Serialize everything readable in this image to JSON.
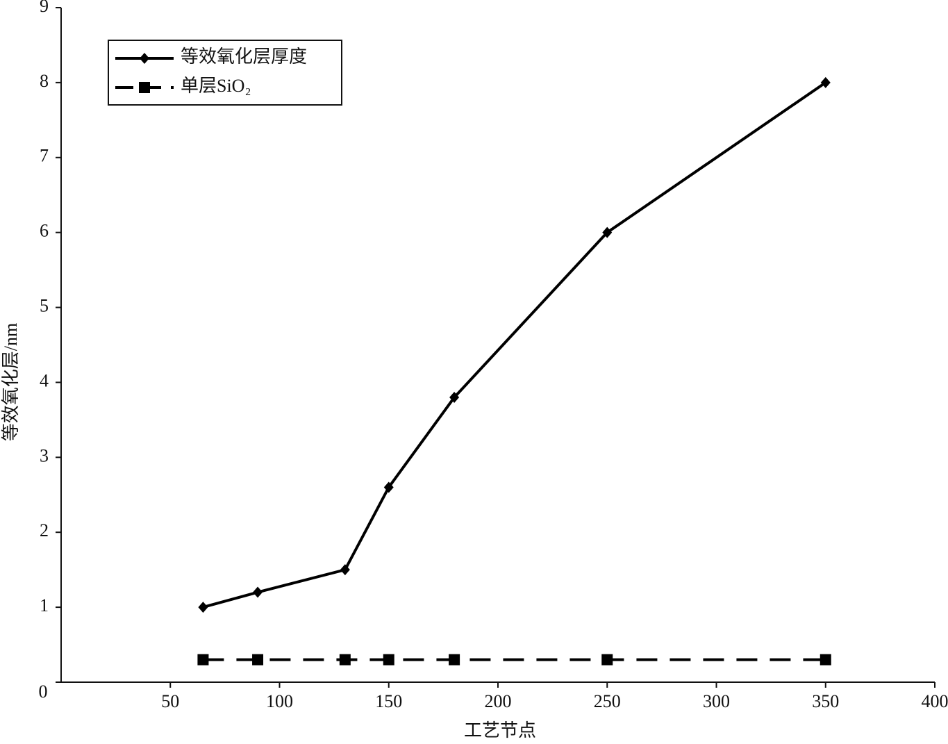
{
  "chart_data": {
    "type": "line",
    "x_label": "工艺节点",
    "y_label": "等效氧化层/nm",
    "x": [
      65,
      90,
      130,
      150,
      180,
      250,
      350
    ],
    "series": [
      {
        "name": "等效氧化层厚度",
        "color": "#000000",
        "marker": "diamond",
        "dash": false,
        "values": [
          1,
          1.2,
          1.5,
          2.6,
          3.8,
          6,
          8
        ]
      },
      {
        "name": "单层SiO₂",
        "color": "#000000",
        "marker": "square",
        "dash": true,
        "values": [
          0.3,
          0.3,
          0.3,
          0.3,
          0.3,
          0.3,
          0.3
        ]
      }
    ],
    "xlim": [
      0,
      400
    ],
    "xticks": [
      50,
      100,
      150,
      200,
      250,
      300,
      350,
      400
    ],
    "ylim": [
      0,
      9
    ],
    "yticks": [
      0,
      1,
      2,
      3,
      4,
      5,
      6,
      7,
      8,
      9
    ],
    "grid": false,
    "legend": "upper left"
  }
}
